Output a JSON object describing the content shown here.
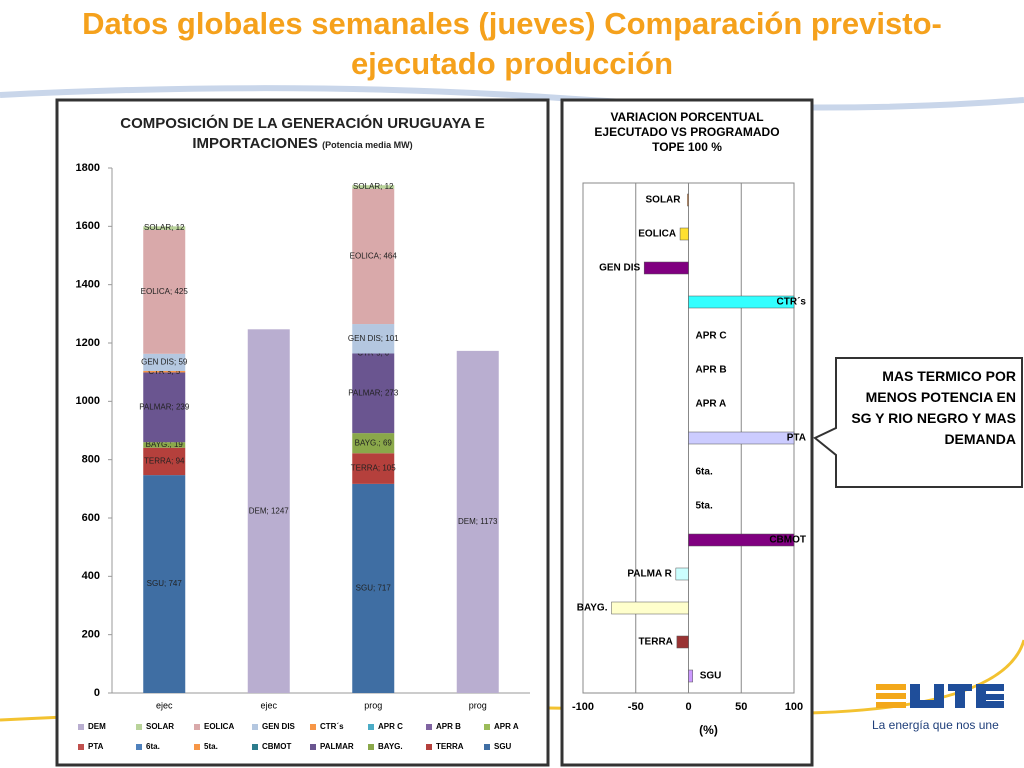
{
  "title": "Datos globales semanales  (jueves) Comparación previsto-ejecutado producción",
  "callout": "MAS TERMICO POR MENOS POTENCIA EN SG Y RIO NEGRO Y MAS DEMANDA",
  "logo_tagline": "La energía que nos une",
  "chart_data": [
    {
      "type": "stacked_bar",
      "title": "COMPOSICIÓN DE LA GENERACIÓN URUGUAYA E IMPORTACIONES",
      "subtitle": "(Potencia media MW)",
      "categories": [
        "ejec",
        "ejec",
        "prog",
        "prog"
      ],
      "ylim": [
        0,
        1800
      ],
      "yticks": [
        0,
        200,
        400,
        600,
        800,
        1000,
        1200,
        1400,
        1600,
        1800
      ],
      "legend_order": [
        "DEM",
        "SOLAR",
        "EOLICA",
        "GEN DIS",
        "CTR´s",
        "APR C",
        "APR B",
        "APR A",
        "PTA",
        "6ta.",
        "5ta.",
        "CBMOT",
        "PALMAR",
        "BAYG.",
        "TERRA",
        "SGU"
      ],
      "series": [
        {
          "name": "SGU",
          "color": "#3f6ea3",
          "values": [
            747,
            null,
            717,
            null
          ],
          "value_labels": [
            "SGU; 747",
            null,
            "SGU; 717",
            null
          ]
        },
        {
          "name": "TERRA",
          "color": "#b5403c",
          "values": [
            94,
            null,
            105,
            null
          ],
          "value_labels": [
            "TERRA; 94",
            null,
            "TERRA; 105",
            null
          ]
        },
        {
          "name": "BAYG.",
          "color": "#8aa84a",
          "values": [
            19,
            null,
            69,
            null
          ],
          "value_labels": [
            "BAYG.; 19",
            null,
            "BAYG.; 69",
            null
          ]
        },
        {
          "name": "PALMAR",
          "color": "#6a5590",
          "values": [
            239,
            null,
            273,
            null
          ],
          "value_labels": [
            "PALMAR; 239",
            null,
            "PALMAR; 273",
            null
          ]
        },
        {
          "name": "CBMOT",
          "color": "#2c7c8c",
          "values": [
            null,
            null,
            null,
            null
          ]
        },
        {
          "name": "5ta.",
          "color": "#f79646",
          "values": [
            null,
            null,
            null,
            null
          ]
        },
        {
          "name": "6ta.",
          "color": "#4f81bd",
          "values": [
            null,
            null,
            null,
            null
          ]
        },
        {
          "name": "PTA",
          "color": "#c0504d",
          "values": [
            null,
            null,
            null,
            null
          ]
        },
        {
          "name": "APR A",
          "color": "#9bbb59",
          "values": [
            null,
            null,
            null,
            null
          ]
        },
        {
          "name": "APR B",
          "color": "#8064a2",
          "values": [
            null,
            null,
            null,
            null
          ]
        },
        {
          "name": "APR C",
          "color": "#4bacc6",
          "values": [
            null,
            null,
            null,
            null
          ]
        },
        {
          "name": "CTR´s",
          "color": "#f79646",
          "values": [
            5,
            null,
            0,
            null
          ],
          "value_labels": [
            "CTR´s; 5",
            null,
            "CTR´s; 0",
            null
          ]
        },
        {
          "name": "GEN DIS",
          "color": "#b4c7e0",
          "values": [
            59,
            null,
            101,
            null
          ],
          "value_labels": [
            "GEN DIS; 59",
            null,
            "GEN DIS; 101",
            null
          ]
        },
        {
          "name": "EOLICA",
          "color": "#d9a9aa",
          "values": [
            425,
            null,
            464,
            null
          ],
          "value_labels": [
            "EOLICA; 425",
            null,
            "EOLICA; 464",
            null
          ]
        },
        {
          "name": "SOLAR",
          "color": "#b9d39a",
          "values": [
            12,
            null,
            12,
            null
          ],
          "value_labels": [
            "SOLAR; 12",
            null,
            "SOLAR; 12",
            null
          ]
        },
        {
          "name": "DEM",
          "color": "#b9aed0",
          "values": [
            null,
            1247,
            null,
            1173
          ],
          "value_labels": [
            null,
            "DEM; 1247",
            null,
            "DEM; 1173"
          ]
        }
      ]
    },
    {
      "type": "hbar",
      "title": "VARIACION PORCENTUAL EJECUTADO VS PROGRAMADO TOPE 100 %",
      "xlabel": "(%)",
      "categories": [
        "SOLAR",
        "EOLICA",
        "GEN DIS",
        "CTR´s",
        "APR C",
        "APR B",
        "APR A",
        "PTA",
        "6ta.",
        "5ta.",
        "CBMOT",
        "PALMA R",
        "BAYG.",
        "TERRA",
        "SGU"
      ],
      "values": [
        -1,
        -8,
        -42,
        100,
        null,
        null,
        null,
        100,
        null,
        null,
        100,
        -12,
        -73,
        -11,
        4
      ],
      "colors": [
        "#f79646",
        "#ffe030",
        "#800080",
        "#33ffff",
        "#cccccc",
        "#cccccc",
        "#cccccc",
        "#ccccff",
        "#cccccc",
        "#cccccc",
        "#800080",
        "#ccffff",
        "#ffffcc",
        "#993333",
        "#cc99ff"
      ],
      "xlim": [
        -100,
        100
      ],
      "xticks": [
        -100,
        -50,
        0,
        50,
        100
      ],
      "grid": true
    }
  ]
}
